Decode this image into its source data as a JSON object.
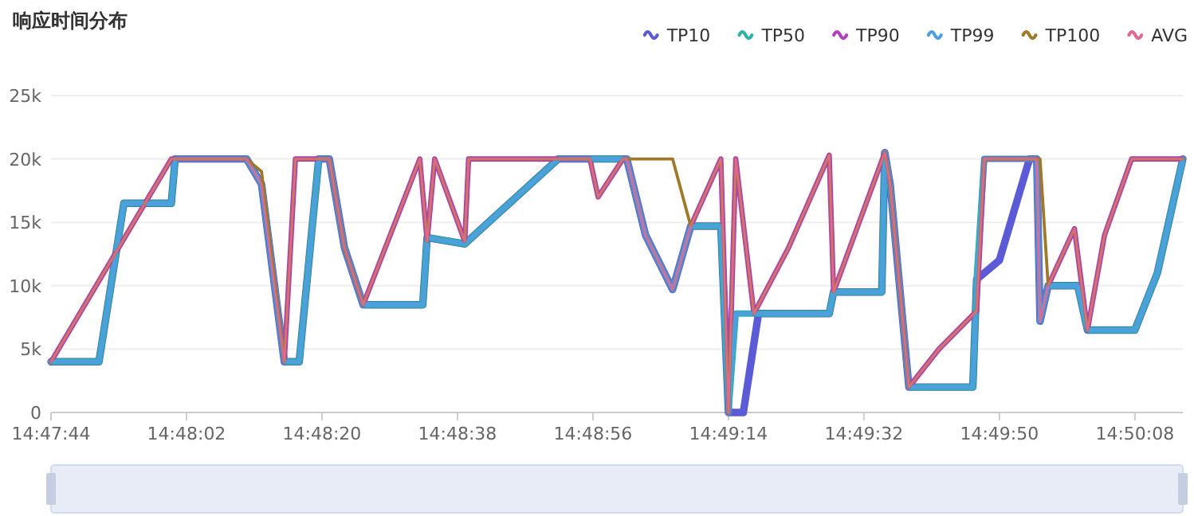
{
  "chart_data": {
    "type": "line",
    "title": "响应时间分布",
    "legend": "top right",
    "grid": "y",
    "marker": "none",
    "line_style": "solid",
    "xlim": [
      14.79556,
      14.83733
    ],
    "xticks": [
      {
        "value": 14.79556,
        "label": "14:47:44"
      },
      {
        "value": 14.80056,
        "label": "14:48:02"
      },
      {
        "value": 14.80556,
        "label": "14:48:20"
      },
      {
        "value": 14.81056,
        "label": "14:48:38"
      },
      {
        "value": 14.81556,
        "label": "14:48:56"
      },
      {
        "value": 14.82056,
        "label": "14:49:14"
      },
      {
        "value": 14.82556,
        "label": "14:49:32"
      },
      {
        "value": 14.83056,
        "label": "14:49:50"
      },
      {
        "value": 14.83556,
        "label": "14:50:08"
      }
    ],
    "ylim": [
      0,
      25000
    ],
    "yticks": [
      0,
      {
        "value": 5000,
        "label": "5k"
      },
      {
        "value": 10000,
        "label": "10k"
      },
      {
        "value": 15000,
        "label": "15k"
      },
      {
        "value": 20000,
        "label": "20k"
      },
      {
        "value": 25000,
        "label": "25k"
      }
    ],
    "series": [
      {
        "name": "TP10",
        "color": "#5b5bd6",
        "x": [
          14.79556,
          14.79733,
          14.79825,
          14.8,
          14.80014,
          14.80278,
          14.80333,
          14.80417,
          14.80472,
          14.80544,
          14.80583,
          14.80639,
          14.80708,
          14.80928,
          14.80944,
          14.81083,
          14.81222,
          14.81428,
          14.81681,
          14.8175,
          14.8185,
          14.81917,
          14.82028,
          14.82056,
          14.82111,
          14.82167,
          14.82428,
          14.82444,
          14.82622,
          14.82633,
          14.82653,
          14.82722,
          14.82958,
          14.82972,
          14.83056,
          14.83167,
          14.83194,
          14.83206,
          14.83236,
          14.83345,
          14.83381,
          14.83556,
          14.83639,
          14.83733
        ],
        "values": [
          4000,
          4000,
          16500,
          16500,
          20000,
          20000,
          18000,
          4000,
          4000,
          20000,
          20000,
          13000,
          8500,
          8500,
          13800,
          13300,
          16000,
          20000,
          20000,
          14000,
          9700,
          14700,
          14700,
          0,
          0,
          7800,
          7800,
          9500,
          9500,
          20500,
          18000,
          2000,
          2000,
          10500,
          12000,
          20000,
          20000,
          7200,
          10000,
          10000,
          6500,
          6500,
          11000,
          20000
        ]
      },
      {
        "name": "TP50",
        "color": "#2ab3a6",
        "x": [
          14.79556,
          14.79733,
          14.79825,
          14.8,
          14.80014,
          14.80278,
          14.80333,
          14.80417,
          14.80472,
          14.80544,
          14.80583,
          14.80639,
          14.80708,
          14.80928,
          14.80944,
          14.81083,
          14.81222,
          14.81428,
          14.81681,
          14.8175,
          14.8185,
          14.81917,
          14.82028,
          14.82056,
          14.82083,
          14.82428,
          14.82444,
          14.82622,
          14.82633,
          14.82653,
          14.82722,
          14.82958,
          14.82972,
          14.83,
          14.83194,
          14.83206,
          14.83236,
          14.83345,
          14.83381,
          14.83556,
          14.83639,
          14.83733
        ],
        "values": [
          4000,
          4000,
          16500,
          16500,
          20000,
          20000,
          18000,
          4000,
          4000,
          20000,
          20000,
          13000,
          8500,
          8500,
          13800,
          13300,
          16000,
          20000,
          20000,
          14000,
          9700,
          14700,
          14700,
          0,
          7800,
          7800,
          9500,
          9500,
          20500,
          18000,
          2000,
          2000,
          10500,
          20000,
          20000,
          7200,
          10000,
          10000,
          6500,
          6500,
          11000,
          20000
        ]
      },
      {
        "name": "TP90",
        "color": "#b03fc0",
        "x": [
          14.79556,
          14.8,
          14.80278,
          14.80333,
          14.80417,
          14.80458,
          14.80583,
          14.80639,
          14.80708,
          14.80917,
          14.80944,
          14.80972,
          14.81083,
          14.81097,
          14.81545,
          14.81575,
          14.81667,
          14.81681,
          14.8175,
          14.8185,
          14.81917,
          14.82028,
          14.82056,
          14.82083,
          14.8215,
          14.82278,
          14.82428,
          14.82444,
          14.82633,
          14.82653,
          14.82722,
          14.82833,
          14.82972,
          14.83,
          14.83194,
          14.83206,
          14.83236,
          14.83333,
          14.83381,
          14.83444,
          14.83544,
          14.83733
        ],
        "values": [
          4000,
          20000,
          20000,
          18000,
          4000,
          20000,
          20000,
          13000,
          8500,
          20000,
          13500,
          20000,
          13500,
          20000,
          20000,
          17000,
          20000,
          20000,
          14000,
          9700,
          14700,
          20000,
          0,
          20000,
          7800,
          13000,
          20300,
          9500,
          20500,
          18000,
          2000,
          5000,
          8000,
          20000,
          20000,
          7200,
          10000,
          14500,
          6500,
          14000,
          20000,
          20000
        ]
      },
      {
        "name": "TP99",
        "color": "#4f9fe0",
        "x": [
          14.79556,
          14.79733,
          14.79825,
          14.8,
          14.80014,
          14.80278,
          14.80333,
          14.80417,
          14.80472,
          14.80544,
          14.80583,
          14.80639,
          14.80708,
          14.80928,
          14.80944,
          14.81083,
          14.81222,
          14.81428,
          14.81681,
          14.8175,
          14.8185,
          14.81917,
          14.82028,
          14.82056,
          14.82083,
          14.82428,
          14.82444,
          14.82622,
          14.82633,
          14.82653,
          14.82722,
          14.82958,
          14.82972,
          14.83,
          14.83194,
          14.83206,
          14.83236,
          14.83345,
          14.83381,
          14.83556,
          14.83639,
          14.83733
        ],
        "values": [
          4000,
          4000,
          16500,
          16500,
          20000,
          20000,
          18000,
          4000,
          4000,
          20000,
          20000,
          13000,
          8500,
          8500,
          13800,
          13300,
          16000,
          20000,
          20000,
          14000,
          9700,
          14700,
          14700,
          0,
          7800,
          7800,
          9500,
          9500,
          20500,
          18000,
          2000,
          2000,
          10500,
          20000,
          20000,
          7200,
          10000,
          10000,
          6500,
          6500,
          11000,
          20000
        ]
      },
      {
        "name": "TP100",
        "color": "#a0782a",
        "x": [
          14.79556,
          14.8,
          14.80278,
          14.80333,
          14.80417,
          14.80458,
          14.80583,
          14.80639,
          14.80708,
          14.80917,
          14.80944,
          14.80972,
          14.81083,
          14.81097,
          14.81545,
          14.81575,
          14.81667,
          14.81681,
          14.8185,
          14.81917,
          14.82028,
          14.82056,
          14.82083,
          14.8215,
          14.82278,
          14.82428,
          14.82444,
          14.82633,
          14.82653,
          14.82722,
          14.82833,
          14.82972,
          14.83,
          14.83206,
          14.83236,
          14.83333,
          14.83381,
          14.83444,
          14.83544,
          14.83733
        ],
        "values": [
          4000,
          20000,
          20000,
          19000,
          4000,
          20000,
          20000,
          13000,
          8500,
          20000,
          13500,
          20000,
          13500,
          20000,
          20000,
          17000,
          20000,
          20000,
          20000,
          14700,
          20000,
          0,
          20000,
          7800,
          13000,
          20300,
          9500,
          20500,
          18000,
          2000,
          5000,
          8000,
          20000,
          20000,
          10000,
          14500,
          6500,
          14000,
          20000,
          20000
        ]
      },
      {
        "name": "AVG",
        "color": "#e06a8c",
        "x": [
          14.79556,
          14.8,
          14.80278,
          14.80333,
          14.80417,
          14.80458,
          14.80583,
          14.80639,
          14.80708,
          14.80917,
          14.80944,
          14.80972,
          14.81083,
          14.81097,
          14.81545,
          14.81575,
          14.81667,
          14.81681,
          14.8175,
          14.8185,
          14.81917,
          14.82028,
          14.82056,
          14.82083,
          14.8215,
          14.82278,
          14.82428,
          14.82444,
          14.82633,
          14.82653,
          14.82722,
          14.82833,
          14.82972,
          14.83,
          14.83194,
          14.83206,
          14.83236,
          14.83333,
          14.83381,
          14.83444,
          14.83544,
          14.83733
        ],
        "values": [
          4000,
          20000,
          20000,
          18000,
          4000,
          20000,
          20000,
          13000,
          8500,
          20000,
          13500,
          20000,
          13500,
          20000,
          20000,
          17000,
          20000,
          20000,
          14000,
          9700,
          14700,
          20000,
          0,
          20000,
          7800,
          13000,
          20300,
          9500,
          20500,
          18000,
          2000,
          5000,
          8000,
          20000,
          20000,
          7200,
          10000,
          14500,
          6500,
          14000,
          20000,
          20000
        ]
      }
    ]
  }
}
